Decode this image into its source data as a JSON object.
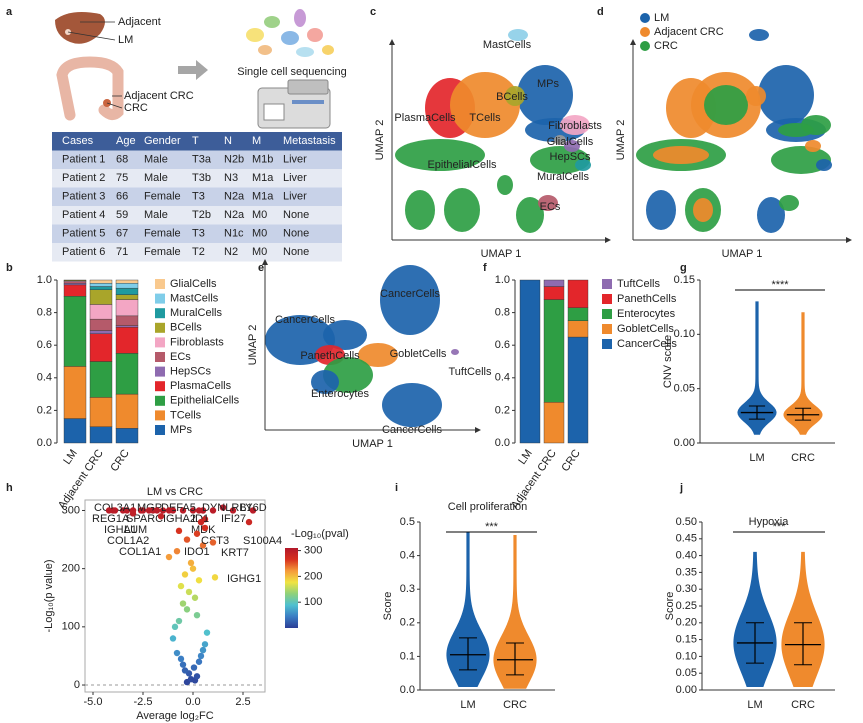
{
  "panel_a": {
    "panel": "a",
    "liver_labels": [
      "Adjacent",
      "LM"
    ],
    "colon_labels": [
      "Adjacent CRC",
      "CRC"
    ],
    "sequencing_label": "Single cell sequencing",
    "table": {
      "header": [
        "Cases",
        "Age",
        "Gender",
        "T",
        "N",
        "M",
        "Metastasis"
      ],
      "rows": [
        [
          "Patient 1",
          68,
          "Male",
          "T3a",
          "N2b",
          "M1b",
          "Liver"
        ],
        [
          "Patient 2",
          75,
          "Male",
          "T3b",
          "N3",
          "M1a",
          "Liver"
        ],
        [
          "Patient 3",
          66,
          "Female",
          "T3",
          "N2a",
          "M1a",
          "Liver"
        ],
        [
          "Patient 4",
          59,
          "Male",
          "T2b",
          "N2a",
          "M0",
          "None"
        ],
        [
          "Patient 5",
          67,
          "Female",
          "T3",
          "N1c",
          "M0",
          "None"
        ],
        [
          "Patient 6",
          71,
          "Female",
          "T2",
          "N2",
          "M0",
          "None"
        ]
      ]
    }
  },
  "chart_data": [
    {
      "type": "umap",
      "panel": "c",
      "x_label": "UMAP 1",
      "y_label": "UMAP 2",
      "cluster_labels": [
        "MastCells",
        "BCells",
        "MPs",
        "PlasmaCells",
        "TCells",
        "Fibroblasts",
        "GlialCells",
        "HepSCs",
        "EpithelialCells",
        "MuralCells",
        "ECs"
      ]
    },
    {
      "type": "umap",
      "panel": "d",
      "x_label": "UMAP 1",
      "y_label": "UMAP 2",
      "legend": [
        {
          "name": "LM",
          "color": "#1c63ab"
        },
        {
          "name": "Adjacent CRC",
          "color": "#ef8a2d"
        },
        {
          "name": "CRC",
          "color": "#2e9e44"
        }
      ]
    },
    {
      "type": "stacked_bar",
      "panel": "b",
      "categories": [
        "LM",
        "Adjacent CRC",
        "CRC"
      ],
      "ylim": [
        0,
        1
      ],
      "yticks": [
        {
          "value": 0,
          "label": "0.0"
        },
        0.2,
        0.4,
        0.6,
        0.8,
        {
          "value": 1,
          "label": "1.0"
        }
      ],
      "series": [
        {
          "name": "MPs",
          "color": "#1c63ab",
          "values": [
            0.15,
            0.1,
            0.09
          ]
        },
        {
          "name": "TCells",
          "color": "#ef8a2d",
          "values": [
            0.32,
            0.18,
            0.21
          ]
        },
        {
          "name": "EpithelialCells",
          "color": "#2e9e44",
          "values": [
            0.43,
            0.22,
            0.25
          ]
        },
        {
          "name": "PlasmaCells",
          "color": "#e3262b",
          "values": [
            0.07,
            0.17,
            0.16
          ]
        },
        {
          "name": "HepSCs",
          "color": "#8e6bb0",
          "values": [
            0.01,
            0.02,
            0.01
          ]
        },
        {
          "name": "ECs",
          "color": "#b55a6a",
          "values": [
            0.01,
            0.07,
            0.06
          ]
        },
        {
          "name": "Fibroblasts",
          "color": "#f3a6c4",
          "values": [
            0.005,
            0.09,
            0.1
          ]
        },
        {
          "name": "BCells",
          "color": "#a9a52a",
          "values": [
            0.005,
            0.09,
            0.03
          ]
        },
        {
          "name": "MuralCells",
          "color": "#1f9aa0",
          "values": [
            0,
            0.02,
            0.04
          ]
        },
        {
          "name": "MastCells",
          "color": "#7fcde9",
          "values": [
            0,
            0.02,
            0.03
          ]
        },
        {
          "name": "GlialCells",
          "color": "#f9c98e",
          "values": [
            0,
            0.02,
            0.02
          ]
        }
      ]
    },
    {
      "type": "umap",
      "panel": "e",
      "x_label": "UMAP 1",
      "y_label": "UMAP 2",
      "cluster_labels": [
        "CancerCells",
        "CancerCells",
        "PanethCells",
        "GobletCells",
        "TuftCells",
        "Enterocytes",
        "CancerCells"
      ]
    },
    {
      "type": "stacked_bar",
      "panel": "f",
      "categories": [
        "LM",
        "Adjacent CRC",
        "CRC"
      ],
      "ylim": [
        0,
        1
      ],
      "yticks": [
        {
          "value": 0,
          "label": "0.0"
        },
        0.2,
        0.4,
        0.6,
        0.8,
        {
          "value": 1,
          "label": "1.0"
        }
      ],
      "series": [
        {
          "name": "CancerCells",
          "color": "#1c63ab",
          "values": [
            1.0,
            0,
            0.65
          ]
        },
        {
          "name": "GobletCells",
          "color": "#ef8a2d",
          "values": [
            0,
            0.25,
            0.1
          ]
        },
        {
          "name": "Enterocytes",
          "color": "#2e9e44",
          "values": [
            0,
            0.63,
            0.08
          ]
        },
        {
          "name": "PanethCells",
          "color": "#e3262b",
          "values": [
            0,
            0.08,
            0.17
          ]
        },
        {
          "name": "TuftCells",
          "color": "#8e6bb0",
          "values": [
            0,
            0.04,
            0
          ]
        }
      ]
    },
    {
      "type": "violin",
      "panel": "g",
      "y_label": "CNV score",
      "categories": [
        "LM",
        "CRC"
      ],
      "colors": [
        "#1c63ab",
        "#ef8a2d"
      ],
      "min": [
        0.008,
        0.008
      ],
      "q1": [
        0.022,
        0.021
      ],
      "median": [
        0.028,
        0.026
      ],
      "q3": [
        0.034,
        0.032
      ],
      "max": [
        0.13,
        0.12
      ],
      "ylim": [
        0,
        0.15
      ],
      "yticks": [
        {
          "value": 0,
          "label": "0.00"
        },
        0.05,
        {
          "value": 0.1,
          "label": "0.10"
        },
        0.15
      ],
      "significance": "****"
    },
    {
      "type": "volcano",
      "panel": "h",
      "title": "LM vs CRC",
      "x_label": "Average log₂FC",
      "y_label": "-Log₁₀(p value)",
      "colorbar_label": "-Log₁₀(pval)",
      "xlim": [
        -5.4,
        3.6
      ],
      "ylim": [
        -12,
        318
      ],
      "xticks": [
        {
          "value": -5,
          "label": "-5.0"
        },
        -2.5,
        {
          "value": 0,
          "label": "0.0"
        },
        2.5
      ],
      "yticks": [
        0,
        100,
        200,
        300
      ],
      "clim": [
        0,
        310
      ],
      "colorbar_ticks": [
        100,
        200,
        300
      ],
      "colormap": [
        "#2c3e96",
        "#3b7dc4",
        "#4fc0d0",
        "#8fd17a",
        "#f0e442",
        "#f59a3a",
        "#d7301f",
        "#b2182b"
      ],
      "x": [
        -0.3,
        -0.1,
        0.1,
        0.2,
        -0.2,
        0.05,
        -0.4,
        0.3,
        -0.5,
        0.4,
        -0.6,
        0.5,
        -0.8,
        0.6,
        -1.0,
        0.7,
        -0.9,
        -0.7,
        0.2,
        -0.3,
        -0.5,
        0.1,
        -0.2,
        -0.6,
        0.3,
        -0.4,
        0.0,
        -0.1,
        -1.2,
        -0.8,
        0.5,
        -0.3,
        -4.0,
        -3.5,
        -3.0,
        -2.5,
        -2.0,
        -1.5,
        -1.0,
        -0.5,
        0.0,
        0.5,
        1.5,
        2.0,
        -0.7,
        0.6
      ],
      "values": [
        5,
        10,
        8,
        15,
        20,
        30,
        25,
        40,
        35,
        50,
        45,
        60,
        55,
        70,
        80,
        90,
        100,
        110,
        120,
        130,
        140,
        150,
        160,
        170,
        180,
        190,
        200,
        210,
        220,
        230,
        240,
        250,
        300,
        300,
        300,
        300,
        300,
        300,
        300,
        300,
        300,
        300,
        305,
        300,
        265,
        285
      ],
      "genes": [
        {
          "label": "COL3A1",
          "x": -3.3,
          "y": 300
        },
        {
          "label": "MGP",
          "x": -2.6,
          "y": 300
        },
        {
          "label": "DEFA5",
          "x": -1.8,
          "y": 300
        },
        {
          "label": "DYNLRB1",
          "x": 0.5,
          "y": 300
        },
        {
          "label": "LY6D",
          "x": 3.0,
          "y": 300
        },
        {
          "label": "REG1A",
          "x": -4.2,
          "y": 300
        },
        {
          "label": "SPARC",
          "x": -3.0,
          "y": 300
        },
        {
          "label": "IGHA2",
          "x": -1.2,
          "y": 300
        },
        {
          "label": "ID1",
          "x": 0.3,
          "y": 300
        },
        {
          "label": "IFI27",
          "x": 1.0,
          "y": 300
        },
        {
          "label": "IGHA1",
          "x": -3.9,
          "y": 300
        },
        {
          "label": "LUM",
          "x": -1.6,
          "y": 290
        },
        {
          "label": "MDK",
          "x": 0.4,
          "y": 280
        },
        {
          "label": "CST3",
          "x": 0.6,
          "y": 270
        },
        {
          "label": "S100A4",
          "x": 2.8,
          "y": 280
        },
        {
          "label": "COL1A2",
          "x": -3.0,
          "y": 295
        },
        {
          "label": "IDO1",
          "x": 0.2,
          "y": 260
        },
        {
          "label": "KRT7",
          "x": 1.0,
          "y": 245
        },
        {
          "label": "COL1A1",
          "x": -2.2,
          "y": 300
        },
        {
          "label": "IGHG1",
          "x": 1.1,
          "y": 185
        }
      ]
    },
    {
      "type": "violin",
      "panel": "i",
      "title": "Cell proliferation",
      "y_label": "Score",
      "categories": [
        "LM",
        "CRC"
      ],
      "colors": [
        "#1c63ab",
        "#ef8a2d"
      ],
      "min": [
        0.01,
        0.005
      ],
      "q1": [
        0.06,
        0.045
      ],
      "median": [
        0.105,
        0.09
      ],
      "q3": [
        0.155,
        0.14
      ],
      "max": [
        0.47,
        0.46
      ],
      "ylim": [
        0,
        0.5
      ],
      "yticks": [
        {
          "value": 0,
          "label": "0.0"
        },
        0.1,
        0.2,
        0.3,
        0.4,
        0.5
      ],
      "significance": "***"
    },
    {
      "type": "violin",
      "panel": "j",
      "title": "Hypoxia",
      "y_label": "Score",
      "categories": [
        "LM",
        "CRC"
      ],
      "colors": [
        "#1c63ab",
        "#ef8a2d"
      ],
      "min": [
        0.01,
        0.01
      ],
      "q1": [
        0.08,
        0.075
      ],
      "median": [
        0.14,
        0.135
      ],
      "q3": [
        0.2,
        0.2
      ],
      "max": [
        0.41,
        0.41
      ],
      "ylim": [
        0,
        0.5
      ],
      "yticks": [
        {
          "value": 0,
          "label": "0.00"
        },
        0.05,
        {
          "value": 0.1,
          "label": "0.10"
        },
        0.15,
        {
          "value": 0.2,
          "label": "0.20"
        },
        0.25,
        {
          "value": 0.3,
          "label": "0.30"
        },
        0.35,
        {
          "value": 0.4,
          "label": "0.40"
        },
        0.45,
        {
          "value": 0.5,
          "label": "0.50"
        }
      ],
      "significance": "***"
    }
  ]
}
